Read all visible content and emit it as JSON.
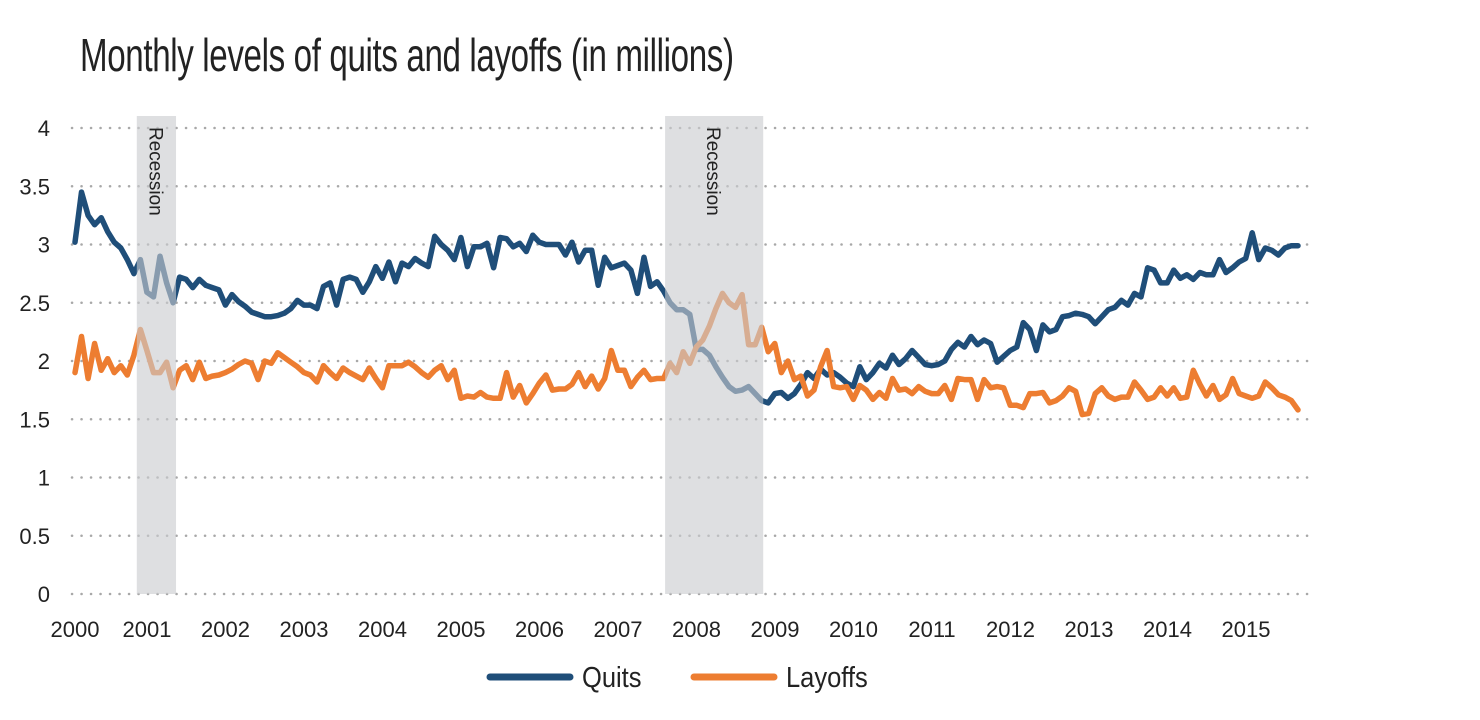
{
  "chart_data": {
    "type": "line",
    "title": "Monthly levels of quits and layoffs (in millions)",
    "xlabel": "",
    "ylabel": "",
    "x_start": "2000-01",
    "x_frequency": "monthly",
    "xlim": [
      2000,
      2015.75
    ],
    "ylim": [
      0,
      4
    ],
    "x_ticks": [
      "2000",
      "2001",
      "2002",
      "2003",
      "2004",
      "2005",
      "2006",
      "2007",
      "2008",
      "2009",
      "2010",
      "2011",
      "2012",
      "2013",
      "2014",
      "2015"
    ],
    "y_ticks": [
      "0",
      "0.5",
      "1",
      "1.5",
      "2",
      "2.5",
      "3",
      "3.5",
      "4"
    ],
    "grid": "horizontal-dotted",
    "legend_position": "bottom",
    "recessions": [
      {
        "label": "Recession",
        "start": 2000.87,
        "end": 2001.37
      },
      {
        "label": "Recession",
        "start": 2007.6,
        "end": 2008.85
      }
    ],
    "series": [
      {
        "name": "Quits",
        "color": "#1f4e79",
        "values": [
          3.02,
          3.45,
          3.25,
          3.17,
          3.23,
          3.11,
          3.02,
          2.97,
          2.87,
          2.75,
          2.87,
          2.59,
          2.55,
          2.9,
          2.67,
          2.5,
          2.72,
          2.7,
          2.63,
          2.7,
          2.65,
          2.63,
          2.61,
          2.48,
          2.57,
          2.51,
          2.47,
          2.42,
          2.4,
          2.38,
          2.38,
          2.39,
          2.41,
          2.45,
          2.52,
          2.48,
          2.48,
          2.45,
          2.64,
          2.67,
          2.48,
          2.7,
          2.72,
          2.7,
          2.59,
          2.68,
          2.81,
          2.71,
          2.85,
          2.68,
          2.84,
          2.81,
          2.88,
          2.84,
          2.81,
          3.07,
          3.0,
          2.95,
          2.87,
          3.06,
          2.81,
          2.98,
          2.98,
          3.01,
          2.8,
          3.06,
          3.05,
          2.98,
          3.01,
          2.94,
          3.08,
          3.02,
          3.0,
          3.0,
          3.0,
          2.91,
          3.02,
          2.85,
          2.95,
          2.95,
          2.65,
          2.89,
          2.8,
          2.82,
          2.84,
          2.78,
          2.58,
          2.89,
          2.64,
          2.68,
          2.6,
          2.5,
          2.44,
          2.44,
          2.4,
          2.1,
          2.1,
          2.05,
          1.95,
          1.86,
          1.78,
          1.74,
          1.75,
          1.78,
          1.72,
          1.66,
          1.64,
          1.72,
          1.73,
          1.68,
          1.72,
          1.8,
          1.9,
          1.85,
          1.93,
          1.88,
          1.9,
          1.86,
          1.81,
          1.78,
          1.95,
          1.84,
          1.9,
          1.98,
          1.94,
          2.05,
          1.97,
          2.02,
          2.09,
          2.03,
          1.97,
          1.96,
          1.97,
          2.0,
          2.1,
          2.16,
          2.12,
          2.21,
          2.14,
          2.18,
          2.15,
          1.99,
          2.04,
          2.09,
          2.12,
          2.33,
          2.27,
          2.09,
          2.31,
          2.25,
          2.27,
          2.38,
          2.39,
          2.41,
          2.4,
          2.38,
          2.32,
          2.38,
          2.44,
          2.46,
          2.52,
          2.48,
          2.58,
          2.55,
          2.8,
          2.78,
          2.67,
          2.67,
          2.78,
          2.71,
          2.74,
          2.7,
          2.76,
          2.74,
          2.74,
          2.87,
          2.76,
          2.8,
          2.85,
          2.88,
          3.1,
          2.87,
          2.97,
          2.95,
          2.91,
          2.97,
          2.99,
          2.99
        ]
      },
      {
        "name": "Layoffs",
        "color": "#ed7d31",
        "values": [
          1.9,
          2.21,
          1.85,
          2.15,
          1.92,
          2.02,
          1.9,
          1.96,
          1.88,
          2.05,
          2.27,
          2.09,
          1.9,
          1.9,
          1.99,
          1.77,
          1.92,
          1.96,
          1.84,
          1.99,
          1.85,
          1.87,
          1.88,
          1.9,
          1.93,
          1.97,
          2.0,
          1.98,
          1.84,
          2.0,
          1.98,
          2.07,
          2.03,
          1.99,
          1.95,
          1.9,
          1.88,
          1.82,
          1.96,
          1.9,
          1.85,
          1.94,
          1.9,
          1.87,
          1.84,
          1.94,
          1.85,
          1.77,
          1.96,
          1.96,
          1.96,
          1.99,
          1.95,
          1.9,
          1.86,
          1.92,
          1.96,
          1.84,
          1.92,
          1.68,
          1.7,
          1.69,
          1.73,
          1.69,
          1.68,
          1.68,
          1.9,
          1.69,
          1.79,
          1.64,
          1.72,
          1.81,
          1.88,
          1.75,
          1.76,
          1.76,
          1.8,
          1.9,
          1.78,
          1.87,
          1.76,
          1.85,
          2.09,
          1.92,
          1.92,
          1.78,
          1.86,
          1.92,
          1.84,
          1.85,
          1.85,
          1.98,
          1.9,
          2.08,
          1.98,
          2.12,
          2.18,
          2.3,
          2.45,
          2.58,
          2.5,
          2.46,
          2.57,
          2.14,
          2.14,
          2.29,
          2.08,
          2.15,
          1.9,
          2.0,
          1.84,
          1.87,
          1.7,
          1.75,
          1.95,
          2.09,
          1.78,
          1.77,
          1.78,
          1.67,
          1.79,
          1.75,
          1.67,
          1.73,
          1.68,
          1.85,
          1.75,
          1.76,
          1.72,
          1.78,
          1.74,
          1.72,
          1.72,
          1.79,
          1.67,
          1.85,
          1.84,
          1.84,
          1.67,
          1.84,
          1.77,
          1.78,
          1.77,
          1.62,
          1.62,
          1.6,
          1.72,
          1.72,
          1.73,
          1.64,
          1.66,
          1.7,
          1.77,
          1.74,
          1.54,
          1.55,
          1.72,
          1.77,
          1.7,
          1.67,
          1.69,
          1.69,
          1.82,
          1.75,
          1.67,
          1.69,
          1.77,
          1.7,
          1.77,
          1.68,
          1.69,
          1.92,
          1.8,
          1.7,
          1.79,
          1.67,
          1.71,
          1.85,
          1.72,
          1.7,
          1.68,
          1.7,
          1.82,
          1.77,
          1.71,
          1.69,
          1.66,
          1.58
        ]
      }
    ]
  }
}
